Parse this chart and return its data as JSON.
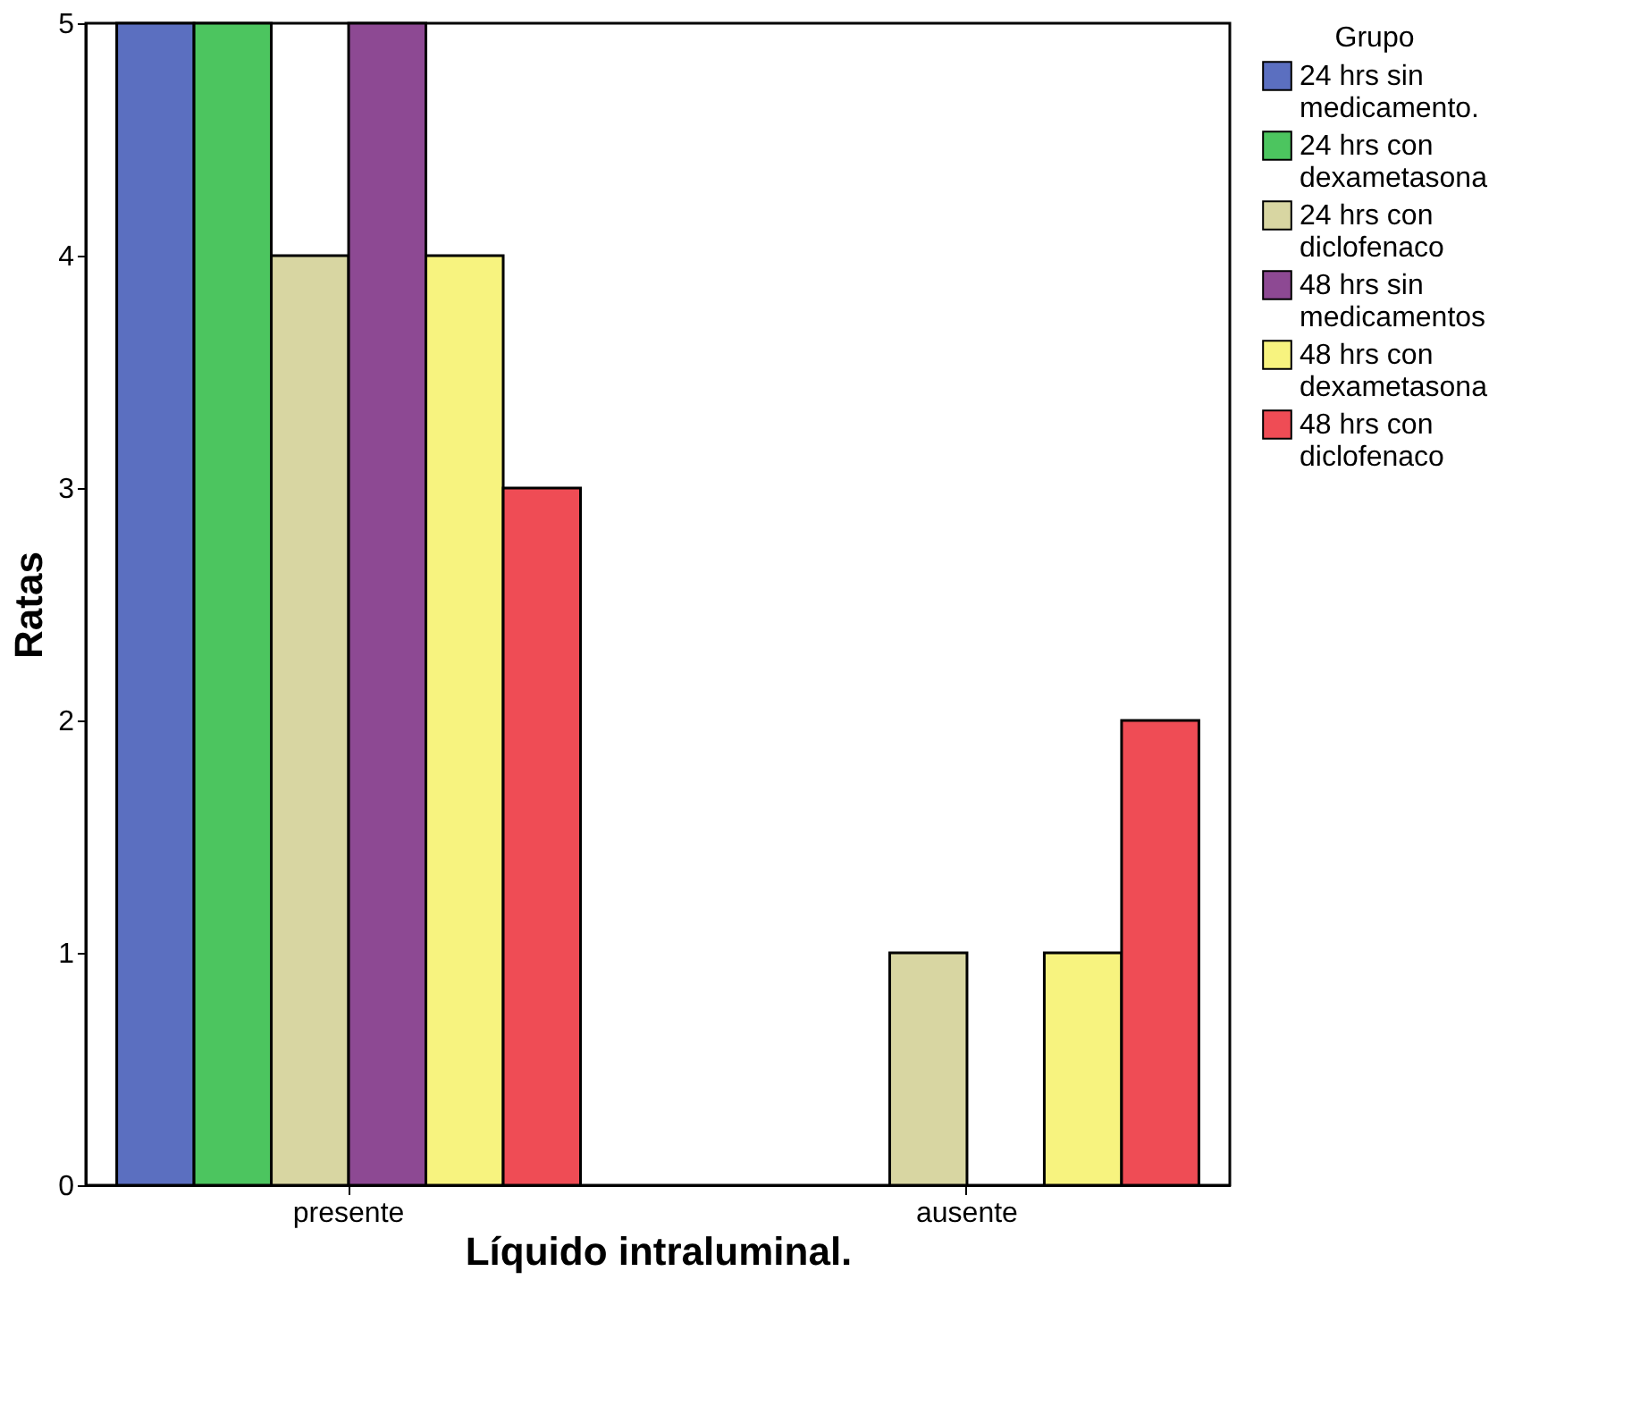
{
  "chart_data": {
    "type": "bar",
    "xlabel": "Líquido intraluminal.",
    "ylabel": "Ratas",
    "legend_title": "Grupo",
    "legend": "top right",
    "grid": false,
    "categories": [
      "presente",
      "ausente"
    ],
    "ylim": [
      0,
      5
    ],
    "yticks": [
      0,
      1,
      2,
      3,
      4,
      5
    ],
    "series": [
      {
        "name": "24 hrs sin medicamento.",
        "color": "#5b6fc0",
        "values": [
          5,
          0
        ]
      },
      {
        "name": "24 hrs con dexametasona",
        "color": "#4cc55f",
        "values": [
          5,
          0
        ]
      },
      {
        "name": "24 hrs con diclofenaco",
        "color": "#d8d6a2",
        "values": [
          4,
          1
        ]
      },
      {
        "name": "48 hrs sin medicamentos",
        "color": "#8d4993",
        "values": [
          5,
          0
        ]
      },
      {
        "name": "48 hrs con dexametasona",
        "color": "#f7f37f",
        "values": [
          4,
          1
        ]
      },
      {
        "name": "48 hrs con diclofenaco",
        "color": "#ef4c55",
        "values": [
          3,
          2
        ]
      }
    ]
  }
}
